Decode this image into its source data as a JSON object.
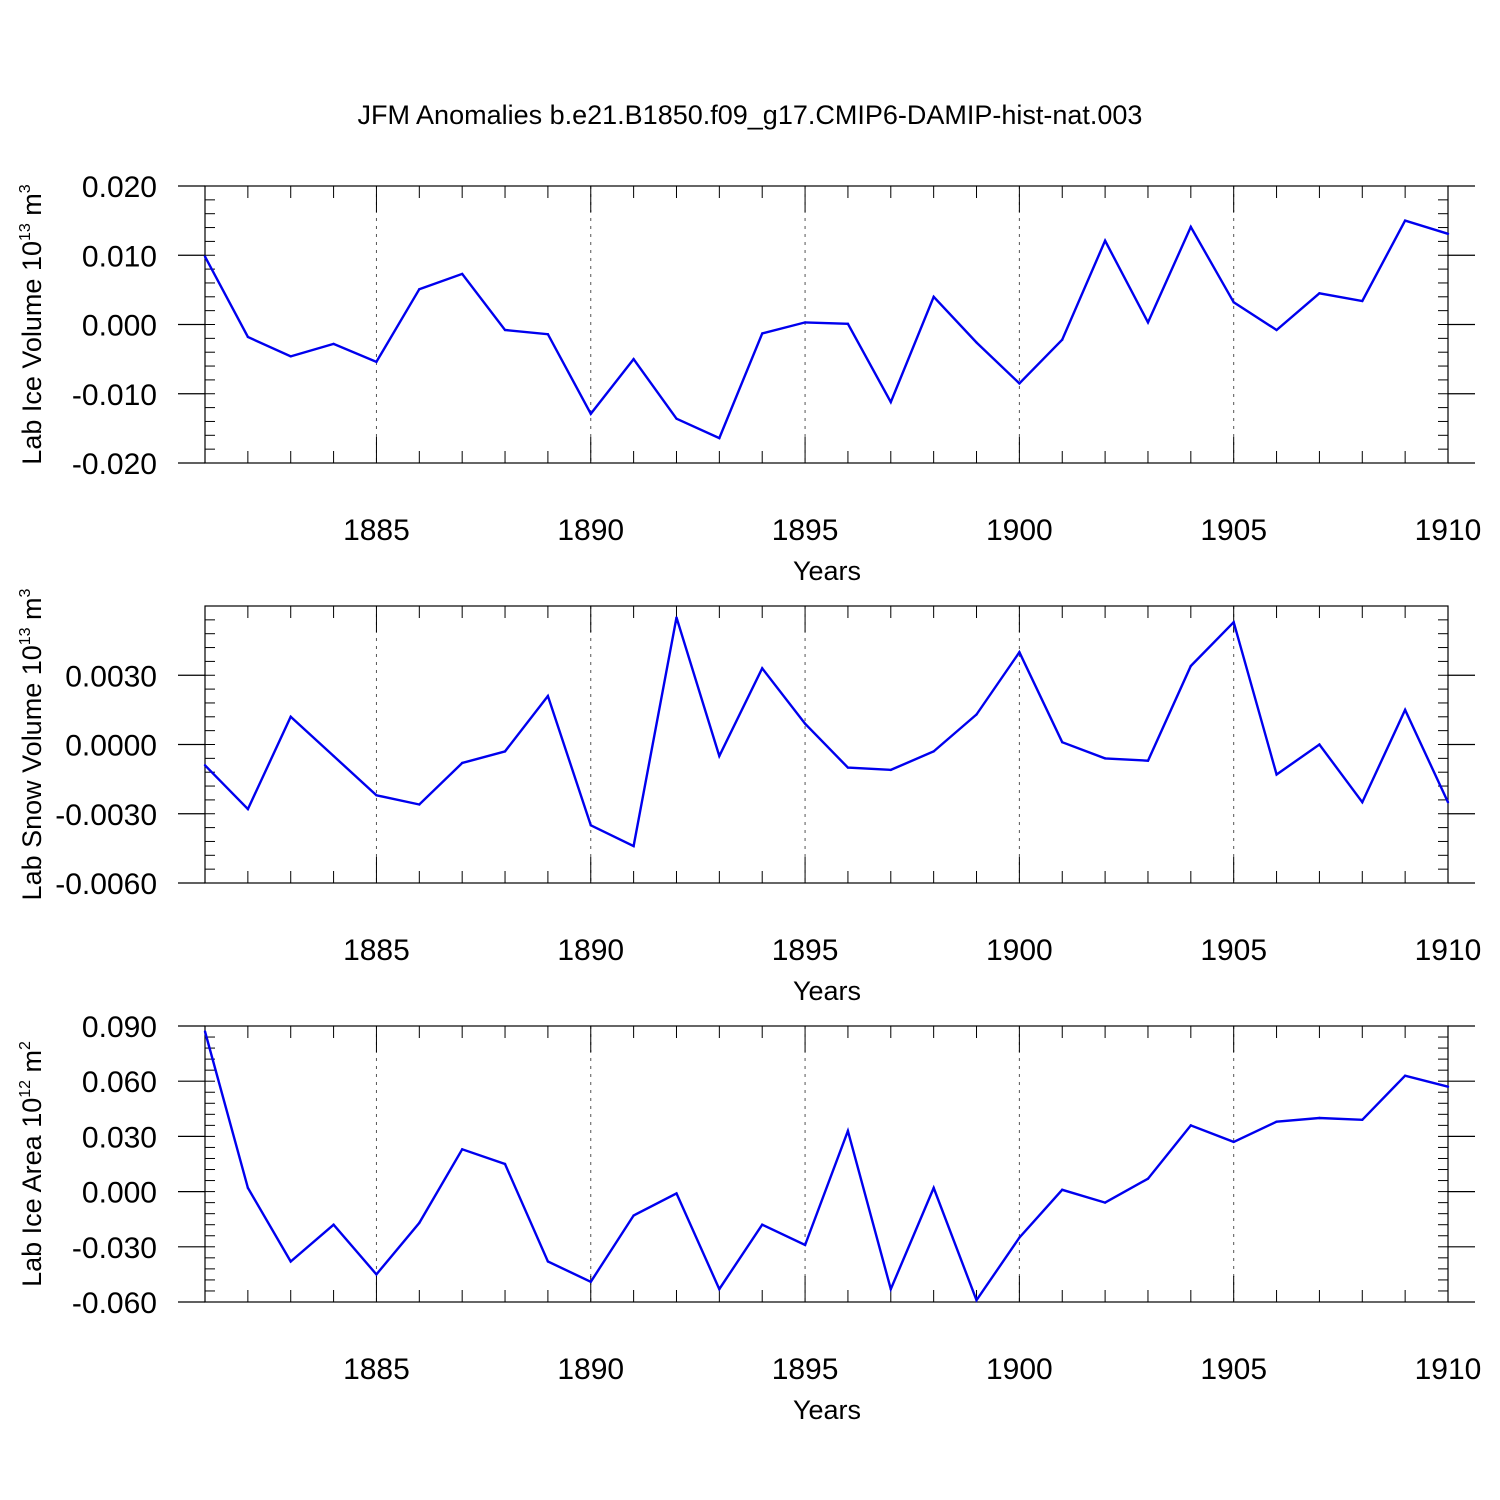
{
  "title": "JFM Anomalies b.e21.B1850.f09_g17.CMIP6-DAMIP-hist-nat.003",
  "colors": {
    "line": "#0000ee",
    "axis": "#000000",
    "grid": "#555555"
  },
  "chart_data": [
    {
      "type": "line",
      "ylabel": "Lab Ice Volume 10",
      "ylabel_exp": "13",
      "ylabel_unit": " m",
      "ylabel_unit_exp": "3",
      "xlabel": "Years",
      "xlim": [
        1881,
        1910
      ],
      "ylim": [
        -0.02,
        0.02
      ],
      "yticks": [
        -0.02,
        -0.01,
        0.0,
        0.01,
        0.02
      ],
      "ytick_labels": [
        "-0.020",
        "-0.010",
        "0.000",
        "0.010",
        "0.020"
      ],
      "xticks": [
        1885,
        1890,
        1895,
        1900,
        1905,
        1910
      ],
      "xtick_labels": [
        "1885",
        "1890",
        "1895",
        "1900",
        "1905",
        "1910"
      ],
      "x": [
        1881,
        1882,
        1883,
        1884,
        1885,
        1886,
        1887,
        1888,
        1889,
        1890,
        1891,
        1892,
        1893,
        1894,
        1895,
        1896,
        1897,
        1898,
        1899,
        1900,
        1901,
        1902,
        1903,
        1904,
        1905,
        1906,
        1907,
        1908,
        1909,
        1910
      ],
      "values": [
        0.0098,
        -0.0018,
        -0.0046,
        -0.0028,
        -0.0054,
        0.0051,
        0.0073,
        -0.0008,
        -0.0014,
        -0.0129,
        -0.005,
        -0.0136,
        -0.0164,
        -0.0013,
        0.0003,
        0.0001,
        -0.0112,
        0.004,
        -0.0026,
        -0.0085,
        -0.0022,
        0.0121,
        0.0003,
        0.0141,
        0.0032,
        -0.0008,
        0.0045,
        0.0034,
        0.015,
        0.0131
      ]
    },
    {
      "type": "line",
      "ylabel": "Lab Snow Volume 10",
      "ylabel_exp": "13",
      "ylabel_unit": " m",
      "ylabel_unit_exp": "3",
      "xlabel": "Years",
      "xlim": [
        1881,
        1910
      ],
      "ylim": [
        -0.006,
        0.006
      ],
      "yticks": [
        -0.006,
        -0.003,
        0.0,
        0.003
      ],
      "ytick_labels": [
        "-0.0060",
        "-0.0030",
        "0.0000",
        "0.0030"
      ],
      "xticks": [
        1885,
        1890,
        1895,
        1900,
        1905,
        1910
      ],
      "xtick_labels": [
        "1885",
        "1890",
        "1895",
        "1900",
        "1905",
        "1910"
      ],
      "x": [
        1881,
        1882,
        1883,
        1884,
        1885,
        1886,
        1887,
        1888,
        1889,
        1890,
        1891,
        1892,
        1893,
        1894,
        1895,
        1896,
        1897,
        1898,
        1899,
        1900,
        1901,
        1902,
        1903,
        1904,
        1905,
        1906,
        1907,
        1908,
        1909,
        1910
      ],
      "values": [
        -0.0009,
        -0.0028,
        0.0012,
        -0.0005,
        -0.0022,
        -0.0026,
        -0.0008,
        -0.0003,
        0.0021,
        -0.0035,
        -0.0044,
        0.0055,
        -0.0005,
        0.0033,
        0.0009,
        -0.001,
        -0.0011,
        -0.0003,
        0.0013,
        0.004,
        0.0001,
        -0.0006,
        -0.0007,
        0.0034,
        0.0053,
        -0.0013,
        0.0,
        -0.0025,
        0.0015,
        -0.0025
      ]
    },
    {
      "type": "line",
      "ylabel": "Lab Ice Area 10",
      "ylabel_exp": "12",
      "ylabel_unit": " m",
      "ylabel_unit_exp": "2",
      "xlabel": "Years",
      "xlim": [
        1881,
        1910
      ],
      "ylim": [
        -0.06,
        0.09
      ],
      "yticks": [
        -0.06,
        -0.03,
        0.0,
        0.03,
        0.06,
        0.09
      ],
      "ytick_labels": [
        "-0.060",
        "-0.030",
        "0.000",
        "0.030",
        "0.060",
        "0.090"
      ],
      "xticks": [
        1885,
        1890,
        1895,
        1900,
        1905,
        1910
      ],
      "xtick_labels": [
        "1885",
        "1890",
        "1895",
        "1900",
        "1905",
        "1910"
      ],
      "x": [
        1881,
        1882,
        1883,
        1884,
        1885,
        1886,
        1887,
        1888,
        1889,
        1890,
        1891,
        1892,
        1893,
        1894,
        1895,
        1896,
        1897,
        1898,
        1899,
        1900,
        1901,
        1902,
        1903,
        1904,
        1905,
        1906,
        1907,
        1908,
        1909,
        1910
      ],
      "values": [
        0.087,
        0.002,
        -0.038,
        -0.018,
        -0.045,
        -0.017,
        0.023,
        0.015,
        -0.038,
        -0.049,
        -0.013,
        -0.001,
        -0.053,
        -0.018,
        -0.029,
        0.033,
        -0.053,
        0.002,
        -0.059,
        -0.025,
        0.001,
        -0.006,
        0.007,
        0.036,
        0.027,
        0.038,
        0.04,
        0.039,
        0.063,
        0.057
      ]
    }
  ]
}
